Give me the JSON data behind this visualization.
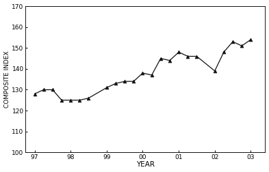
{
  "x_values": [
    97.0,
    97.25,
    97.5,
    97.75,
    98.0,
    98.25,
    98.5,
    99.0,
    99.25,
    99.5,
    99.75,
    100.0,
    100.25,
    100.5,
    100.75,
    101.0,
    101.25,
    101.5,
    102.0,
    102.25,
    102.5,
    102.75,
    103.0
  ],
  "y_values": [
    128,
    130,
    130,
    125,
    125,
    125,
    126,
    131,
    133,
    134,
    134,
    138,
    137,
    145,
    144,
    148,
    146,
    146,
    139,
    148,
    153,
    151,
    154
  ],
  "xlim": [
    96.75,
    103.4
  ],
  "ylim": [
    100,
    170
  ],
  "xticks": [
    97,
    98,
    99,
    100,
    101,
    102,
    103
  ],
  "xticklabels": [
    "97",
    "98",
    "99",
    "00",
    "01",
    "02",
    "03"
  ],
  "yticks": [
    100,
    110,
    120,
    130,
    140,
    150,
    160,
    170
  ],
  "xlabel": "YEAR",
  "ylabel": "COMPOSITE INDEX",
  "line_color": "#111111",
  "marker": "^",
  "marker_size": 3.5,
  "marker_color": "#111111",
  "bg_color": "#ffffff",
  "linewidth": 0.9,
  "tick_fontsize": 6.5,
  "xlabel_fontsize": 7.5,
  "ylabel_fontsize": 6.5
}
